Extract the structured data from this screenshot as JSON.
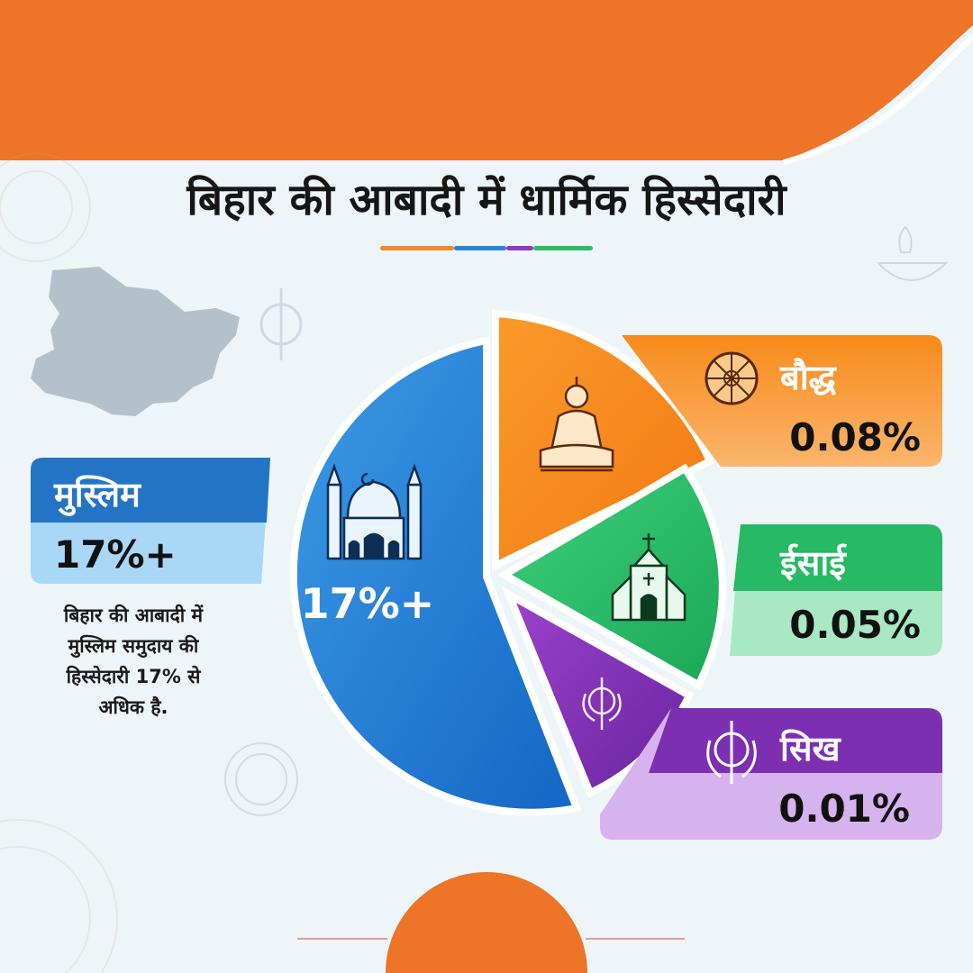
{
  "title": "बिहार की आबादी में धार्मिक हिस्सेदारी",
  "colors": {
    "orange_band": "#ee7428",
    "muslim": "#2a7fd4",
    "muslim_light": "#a6d6f6",
    "buddhist": "#f88a1a",
    "buddhist_light": "#fbc085",
    "christian": "#27b965",
    "christian_light": "#a8e8c2",
    "sikh": "#7d2fb2",
    "sikh_light": "#d6b3ee"
  },
  "muslim": {
    "label": "मुस्लिम",
    "value": "17%+",
    "center_value": "17%+",
    "description": [
      "बिहार की आबादी में",
      "मुस्लिम समुदाय की",
      "हिस्सेदारी 17% से",
      "अधिक है."
    ],
    "icon": "mosque-icon"
  },
  "buddhist": {
    "label": "बौद्ध",
    "value": "0.08%",
    "icon": "dharma-wheel-icon",
    "slice_icon": "buddha-icon"
  },
  "christian": {
    "label": "ईसाई",
    "value": "0.05%",
    "icon": "church-icon"
  },
  "sikh": {
    "label": "सिख",
    "value": "0.01%",
    "icon": "khanda-icon"
  },
  "chart_data": {
    "type": "pie",
    "title": "बिहार की आबादी में धार्मिक हिस्सेदारी",
    "categories": [
      "मुस्लिम",
      "बौद्ध",
      "ईसाई",
      "सिख"
    ],
    "values": [
      17,
      0.08,
      0.05,
      0.01
    ],
    "value_labels": [
      "17%+",
      "0.08%",
      "0.05%",
      "0.01%"
    ],
    "legend": "right"
  }
}
